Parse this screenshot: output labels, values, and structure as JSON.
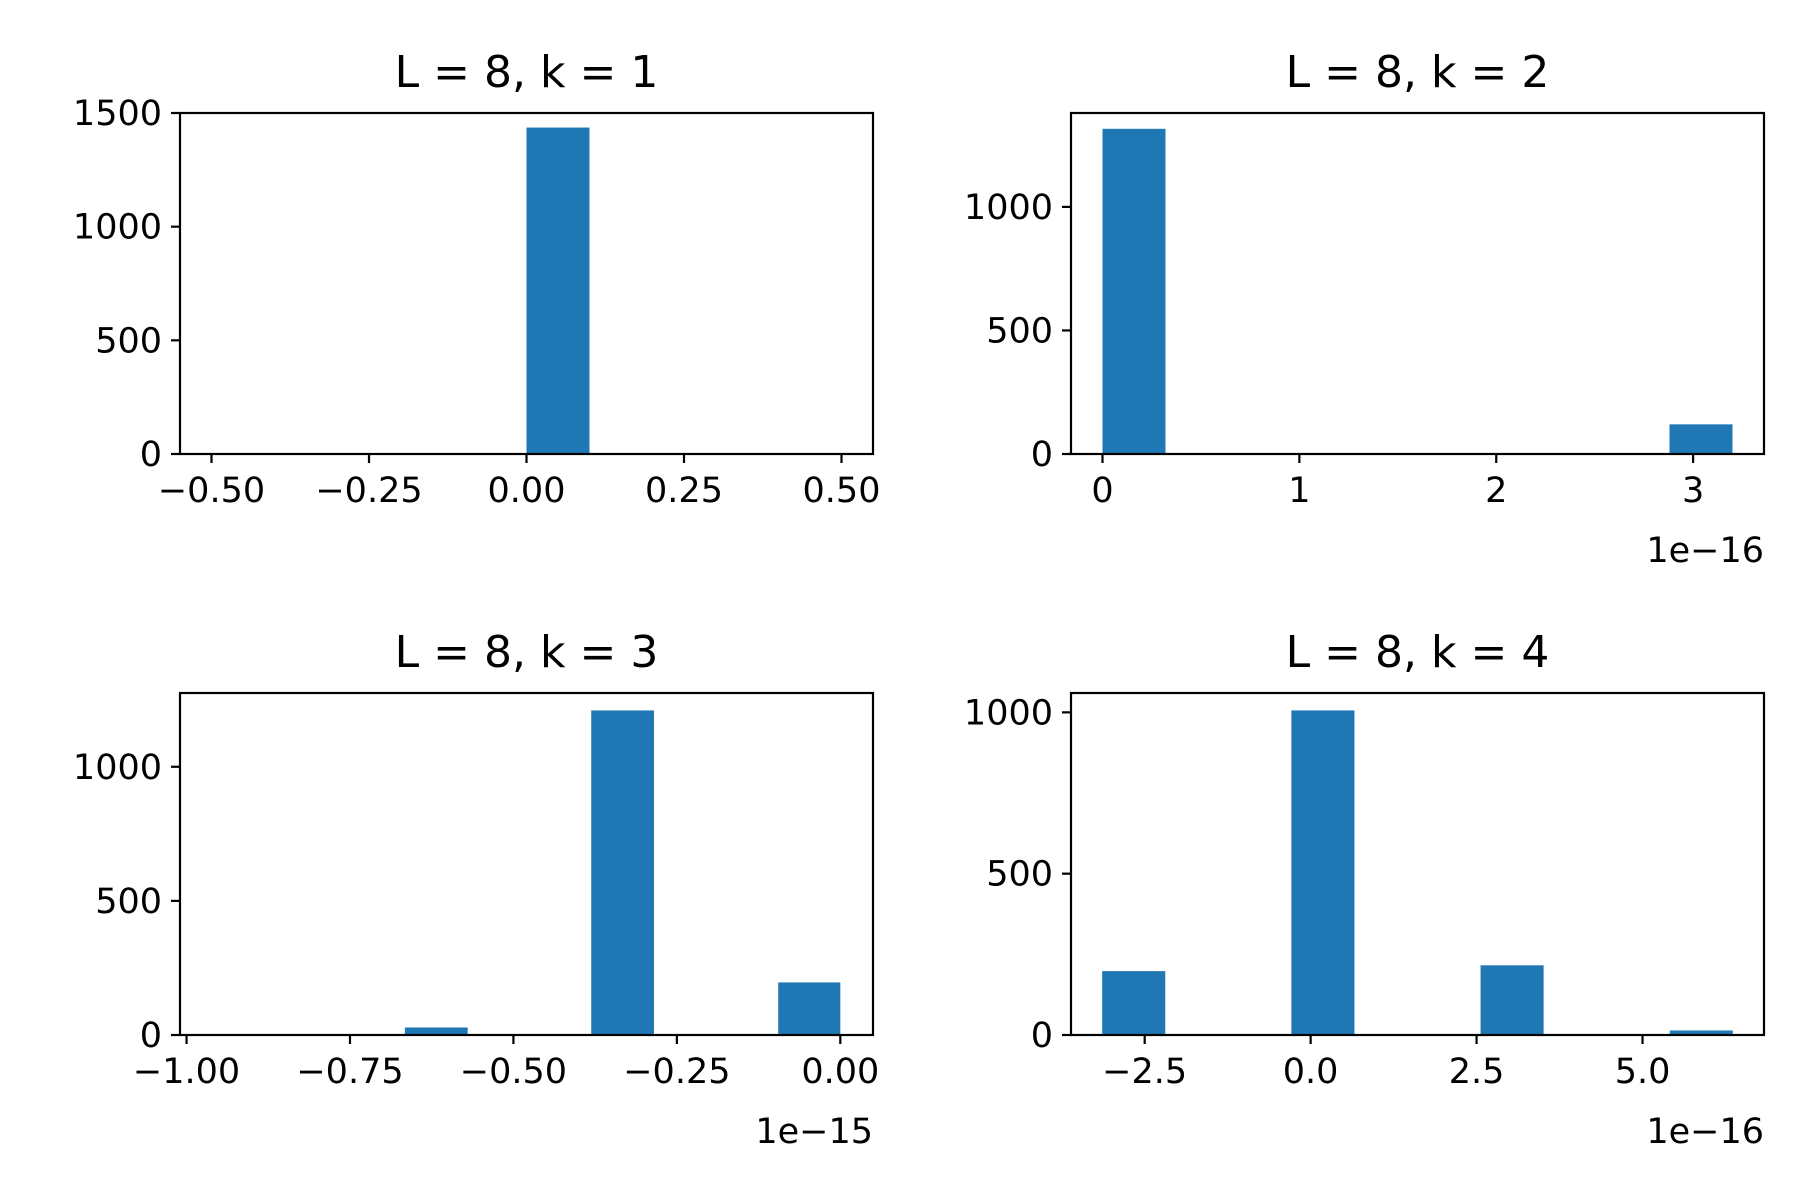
{
  "chart_data": [
    {
      "type": "bar",
      "title": "L = 8, k = 1",
      "bar_color": "#1f77b4",
      "xlim": [
        -0.55,
        0.55
      ],
      "ylim": [
        0,
        1500
      ],
      "xticks": [
        -0.5,
        -0.25,
        0.0,
        0.25,
        0.5
      ],
      "xtick_labels": [
        "−0.50",
        "−0.25",
        "0.00",
        "0.25",
        "0.50"
      ],
      "yticks": [
        0,
        500,
        1000,
        1500
      ],
      "ytick_labels": [
        "0",
        "500",
        "1000",
        "1500"
      ],
      "offset_label": "",
      "bars": [
        {
          "x0": 0.0,
          "x1": 0.1,
          "value": 1436
        }
      ]
    },
    {
      "type": "bar",
      "title": "L = 8, k = 2",
      "bar_color": "#1f77b4",
      "xlim": [
        -0.16,
        3.36
      ],
      "ylim": [
        0,
        1380
      ],
      "xticks": [
        0,
        1,
        2,
        3
      ],
      "xtick_labels": [
        "0",
        "1",
        "2",
        "3"
      ],
      "yticks": [
        0,
        500,
        1000
      ],
      "ytick_labels": [
        "0",
        "500",
        "1000"
      ],
      "offset_label": "1e−16",
      "bars": [
        {
          "x0": 0.0,
          "x1": 0.32,
          "value": 1316
        },
        {
          "x0": 2.88,
          "x1": 3.2,
          "value": 120
        }
      ]
    },
    {
      "type": "bar",
      "title": "L = 8, k = 3",
      "bar_color": "#1f77b4",
      "xlim": [
        -1.01,
        0.05
      ],
      "ylim": [
        0,
        1275
      ],
      "xticks": [
        -1.0,
        -0.75,
        -0.5,
        -0.25,
        0.0
      ],
      "xtick_labels": [
        "−1.00",
        "−0.75",
        "−0.50",
        "−0.25",
        "0.00"
      ],
      "yticks": [
        0,
        500,
        1000
      ],
      "ytick_labels": [
        "0",
        "500",
        "1000"
      ],
      "offset_label": "1e−15",
      "bars": [
        {
          "x0": -0.666,
          "x1": -0.57,
          "value": 28
        },
        {
          "x0": -0.381,
          "x1": -0.285,
          "value": 1210
        },
        {
          "x0": -0.095,
          "x1": 0.0,
          "value": 196
        }
      ]
    },
    {
      "type": "bar",
      "title": "L = 8, k = 4",
      "bar_color": "#1f77b4",
      "xlim": [
        -3.61,
        6.83
      ],
      "ylim": [
        0,
        1060
      ],
      "xticks": [
        -2.5,
        0.0,
        2.5,
        5.0
      ],
      "xtick_labels": [
        "−2.5",
        "0.0",
        "2.5",
        "5.0"
      ],
      "yticks": [
        0,
        500,
        1000
      ],
      "ytick_labels": [
        "0",
        "500",
        "1000"
      ],
      "offset_label": "1e−16",
      "bars": [
        {
          "x0": -3.14,
          "x1": -2.19,
          "value": 198
        },
        {
          "x0": -0.29,
          "x1": 0.66,
          "value": 1006
        },
        {
          "x0": 2.56,
          "x1": 3.51,
          "value": 216
        },
        {
          "x0": 5.41,
          "x1": 6.36,
          "value": 14
        }
      ]
    }
  ]
}
